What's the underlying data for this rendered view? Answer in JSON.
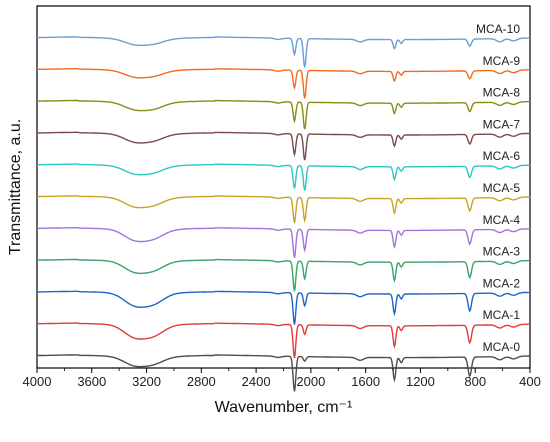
{
  "chart_data": {
    "type": "line",
    "xlabel": "Wavenumber, cm⁻¹",
    "ylabel": "Transmittance, a.u.",
    "xlim": [
      4000,
      400
    ],
    "x_reversed": true,
    "x_ticks": [
      4000,
      3600,
      3200,
      2800,
      2400,
      2000,
      1600,
      1200,
      800,
      400
    ],
    "y_ticks_shown": false,
    "grid": false,
    "legend": "inline labels at right end of each trace",
    "series": [
      {
        "name": "MCA-0",
        "color": "#4d4d4d",
        "baseline": 0.5,
        "features": [
          [
            3290,
            0.25
          ],
          [
            3150,
            0.2
          ],
          [
            2240,
            0.04
          ],
          [
            2120,
            1.1
          ],
          [
            2045,
            0.14
          ],
          [
            1640,
            0.09
          ],
          [
            1390,
            0.7
          ],
          [
            1340,
            0.16
          ],
          [
            840,
            0.6
          ],
          [
            620,
            0.1
          ],
          [
            520,
            0.08
          ]
        ]
      },
      {
        "name": "MCA-1",
        "color": "#e03b3b",
        "baseline": 1.5,
        "features": [
          [
            3290,
            0.35
          ],
          [
            3150,
            0.3
          ],
          [
            2240,
            0.04
          ],
          [
            2120,
            1.05
          ],
          [
            2045,
            0.3
          ],
          [
            1640,
            0.09
          ],
          [
            1390,
            0.65
          ],
          [
            1340,
            0.15
          ],
          [
            840,
            0.55
          ],
          [
            620,
            0.1
          ],
          [
            520,
            0.08
          ]
        ]
      },
      {
        "name": "MCA-2",
        "color": "#1f64c8",
        "baseline": 2.5,
        "features": [
          [
            3290,
            0.35
          ],
          [
            3150,
            0.3
          ],
          [
            2240,
            0.04
          ],
          [
            2120,
            1.0
          ],
          [
            2045,
            0.4
          ],
          [
            1640,
            0.09
          ],
          [
            1390,
            0.62
          ],
          [
            1340,
            0.15
          ],
          [
            840,
            0.55
          ],
          [
            620,
            0.1
          ],
          [
            520,
            0.08
          ]
        ]
      },
      {
        "name": "MCA-3",
        "color": "#3aa266",
        "baseline": 3.5,
        "features": [
          [
            3290,
            0.3
          ],
          [
            3150,
            0.25
          ],
          [
            2240,
            0.04
          ],
          [
            2120,
            0.95
          ],
          [
            2045,
            0.55
          ],
          [
            1640,
            0.09
          ],
          [
            1390,
            0.58
          ],
          [
            1340,
            0.15
          ],
          [
            840,
            0.5
          ],
          [
            620,
            0.1
          ],
          [
            520,
            0.08
          ]
        ]
      },
      {
        "name": "MCA-4",
        "color": "#a374d9",
        "baseline": 4.5,
        "features": [
          [
            3290,
            0.3
          ],
          [
            3150,
            0.25
          ],
          [
            2240,
            0.04
          ],
          [
            2120,
            0.9
          ],
          [
            2045,
            0.65
          ],
          [
            1640,
            0.09
          ],
          [
            1390,
            0.52
          ],
          [
            1340,
            0.15
          ],
          [
            840,
            0.45
          ],
          [
            620,
            0.1
          ],
          [
            520,
            0.08
          ]
        ]
      },
      {
        "name": "MCA-5",
        "color": "#c9a227",
        "baseline": 5.5,
        "features": [
          [
            3290,
            0.25
          ],
          [
            3150,
            0.2
          ],
          [
            2240,
            0.04
          ],
          [
            2120,
            0.8
          ],
          [
            2045,
            0.72
          ],
          [
            1640,
            0.09
          ],
          [
            1390,
            0.45
          ],
          [
            1340,
            0.14
          ],
          [
            840,
            0.4
          ],
          [
            620,
            0.1
          ],
          [
            520,
            0.08
          ]
        ]
      },
      {
        "name": "MCA-6",
        "color": "#2dc6c6",
        "baseline": 6.5,
        "features": [
          [
            3290,
            0.22
          ],
          [
            3150,
            0.18
          ],
          [
            2240,
            0.04
          ],
          [
            2120,
            0.72
          ],
          [
            2045,
            0.78
          ],
          [
            1640,
            0.09
          ],
          [
            1390,
            0.4
          ],
          [
            1340,
            0.14
          ],
          [
            840,
            0.35
          ],
          [
            620,
            0.1
          ],
          [
            520,
            0.08
          ]
        ]
      },
      {
        "name": "MCA-7",
        "color": "#7a4a4a",
        "baseline": 7.5,
        "features": [
          [
            3290,
            0.22
          ],
          [
            3150,
            0.18
          ],
          [
            2240,
            0.04
          ],
          [
            2120,
            0.65
          ],
          [
            2045,
            0.82
          ],
          [
            1640,
            0.08
          ],
          [
            1390,
            0.35
          ],
          [
            1340,
            0.13
          ],
          [
            840,
            0.3
          ],
          [
            620,
            0.1
          ],
          [
            520,
            0.08
          ]
        ]
      },
      {
        "name": "MCA-8",
        "color": "#8a8a17",
        "baseline": 8.5,
        "features": [
          [
            3290,
            0.2
          ],
          [
            3150,
            0.18
          ],
          [
            2240,
            0.04
          ],
          [
            2120,
            0.6
          ],
          [
            2045,
            0.85
          ],
          [
            1640,
            0.08
          ],
          [
            1390,
            0.32
          ],
          [
            1340,
            0.13
          ],
          [
            840,
            0.28
          ],
          [
            620,
            0.1
          ],
          [
            520,
            0.08
          ]
        ]
      },
      {
        "name": "MCA-9",
        "color": "#f26b1d",
        "baseline": 9.5,
        "features": [
          [
            3290,
            0.18
          ],
          [
            3150,
            0.15
          ],
          [
            2240,
            0.04
          ],
          [
            2120,
            0.55
          ],
          [
            2045,
            0.88
          ],
          [
            1640,
            0.08
          ],
          [
            1390,
            0.3
          ],
          [
            1340,
            0.12
          ],
          [
            840,
            0.25
          ],
          [
            620,
            0.1
          ],
          [
            520,
            0.08
          ]
        ]
      },
      {
        "name": "MCA-10",
        "color": "#6a9ed6",
        "baseline": 10.5,
        "features": [
          [
            3290,
            0.16
          ],
          [
            3150,
            0.14
          ],
          [
            2240,
            0.04
          ],
          [
            2120,
            0.5
          ],
          [
            2045,
            0.9
          ],
          [
            1640,
            0.08
          ],
          [
            1390,
            0.28
          ],
          [
            1340,
            0.12
          ],
          [
            840,
            0.22
          ],
          [
            620,
            0.1
          ],
          [
            520,
            0.08
          ]
        ]
      }
    ]
  }
}
